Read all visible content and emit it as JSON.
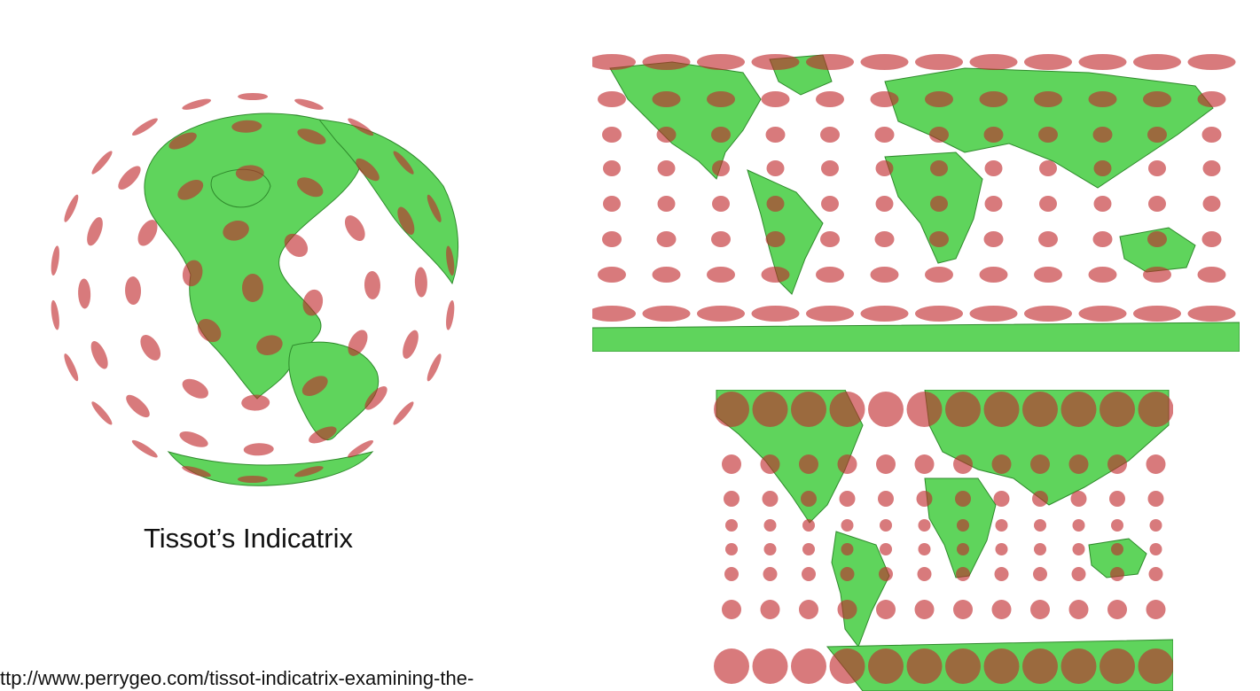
{
  "caption": "Tissot’s Indicatrix",
  "url_text": "ttp://www.perrygeo.com/tissot-indicatrix-examining-the-",
  "colors": {
    "land": "#5fd45c",
    "land_border": "#2f8a2c",
    "indicatrix": "#c0292b"
  },
  "maps": [
    {
      "id": "azimuthal",
      "label": ""
    },
    {
      "id": "plate_carree",
      "label": ""
    },
    {
      "id": "mercator",
      "label": ""
    }
  ]
}
